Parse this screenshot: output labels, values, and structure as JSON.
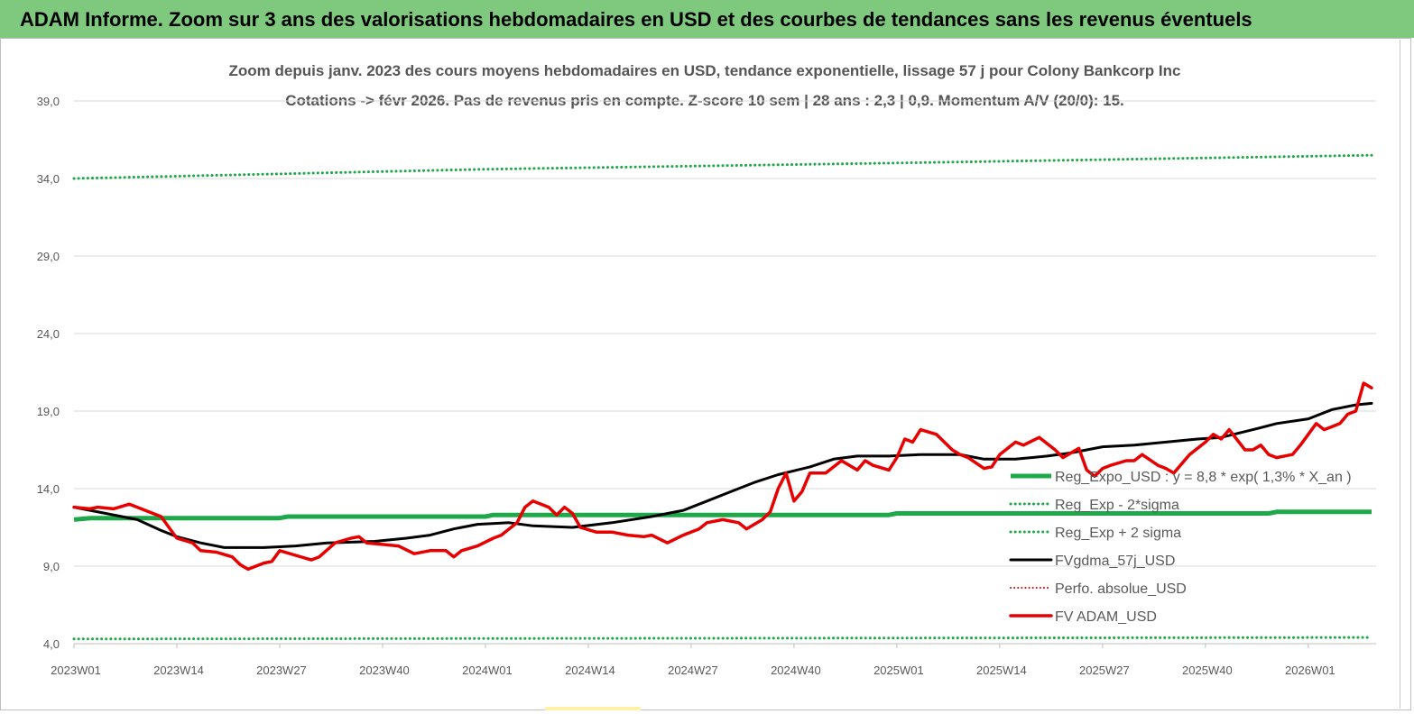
{
  "banner": {
    "title": "ADAM Informe. Zoom sur 3 ans des valorisations hebdomadaires en USD et des courbes de tendances sans les revenus éventuels"
  },
  "colors": {
    "banner_bg": "#7fc97f",
    "reg_expo": "#1ea84a",
    "sigma_bands": "#1ea84a",
    "fvgdma": "#000000",
    "perfo": "#e00000",
    "fvadam": "#e80000",
    "grid": "#d9d9d9"
  },
  "chart_data": {
    "type": "line",
    "title_line1": "Zoom depuis janv. 2023 des cours moyens hebdomadaires en USD, tendance exponentielle, lissage 57 j pour Colony Bankcorp Inc",
    "title_line2": "Cotations -> févr 2026.  Pas de revenus pris en compte. Z-score 10 sem  | 28 ans : 2,3  | 0,9. Momentum A/V (20/0): 15.",
    "xlabel": "",
    "ylabel": "",
    "ylim": [
      4,
      39
    ],
    "yticks": [
      "39,0",
      "34,0",
      "29,0",
      "24,0",
      "19,0",
      "14,0",
      "9,0",
      "4,0"
    ],
    "ytick_values": [
      39,
      34,
      29,
      24,
      19,
      14,
      9,
      4
    ],
    "xticks": [
      "2023W01",
      "2023W14",
      "2023W27",
      "2023W40",
      "2024W01",
      "2024W14",
      "2024W27",
      "2024W40",
      "2025W01",
      "2025W14",
      "2025W27",
      "2025W40",
      "2026W01"
    ],
    "xtick_weeks": [
      0,
      13,
      26,
      39,
      52,
      65,
      78,
      91,
      104,
      117,
      130,
      143,
      156
    ],
    "x_range_weeks": [
      0,
      164
    ],
    "grid": "horizontal",
    "legend_placement": "bottom-right",
    "series": [
      {
        "name": "Reg_Expo_USD : y = 8,8 * exp( 1,3% *  X_an )",
        "style": "thick-solid",
        "keypoints": [
          [
            0,
            12.0
          ],
          [
            2,
            12.1
          ],
          [
            26,
            12.1
          ],
          [
            27,
            12.2
          ],
          [
            52,
            12.2
          ],
          [
            53,
            12.3
          ],
          [
            103,
            12.3
          ],
          [
            104,
            12.4
          ],
          [
            151,
            12.4
          ],
          [
            152,
            12.5
          ],
          [
            164,
            12.5
          ]
        ]
      },
      {
        "name": "Reg_Exp - 2*sigma",
        "style": "dotted",
        "keypoints": [
          [
            0,
            4.3
          ],
          [
            164,
            4.4
          ]
        ]
      },
      {
        "name": "Reg_Exp + 2 sigma",
        "style": "dotted",
        "keypoints": [
          [
            0,
            34.0
          ],
          [
            52,
            34.6
          ],
          [
            104,
            35.0
          ],
          [
            164,
            35.5
          ]
        ]
      },
      {
        "name": "FVgdma_57j_USD",
        "style": "solid",
        "keypoints": [
          [
            0,
            12.8
          ],
          [
            4,
            12.4
          ],
          [
            8,
            12.0
          ],
          [
            11,
            11.3
          ],
          [
            13,
            10.9
          ],
          [
            16,
            10.5
          ],
          [
            19,
            10.2
          ],
          [
            24,
            10.2
          ],
          [
            28,
            10.3
          ],
          [
            32,
            10.5
          ],
          [
            38,
            10.6
          ],
          [
            42,
            10.8
          ],
          [
            45,
            11.0
          ],
          [
            48,
            11.4
          ],
          [
            51,
            11.7
          ],
          [
            55,
            11.8
          ],
          [
            58,
            11.6
          ],
          [
            63,
            11.5
          ],
          [
            68,
            11.8
          ],
          [
            73,
            12.2
          ],
          [
            77,
            12.6
          ],
          [
            80,
            13.2
          ],
          [
            83,
            13.8
          ],
          [
            86,
            14.4
          ],
          [
            89,
            14.9
          ],
          [
            93,
            15.4
          ],
          [
            96,
            15.9
          ],
          [
            99,
            16.1
          ],
          [
            103,
            16.1
          ],
          [
            107,
            16.2
          ],
          [
            112,
            16.2
          ],
          [
            115,
            15.9
          ],
          [
            119,
            15.9
          ],
          [
            123,
            16.1
          ],
          [
            126,
            16.3
          ],
          [
            130,
            16.7
          ],
          [
            134,
            16.8
          ],
          [
            138,
            17.0
          ],
          [
            142,
            17.2
          ],
          [
            145,
            17.3
          ],
          [
            149,
            17.8
          ],
          [
            152,
            18.2
          ],
          [
            156,
            18.5
          ],
          [
            159,
            19.1
          ],
          [
            162,
            19.4
          ],
          [
            164,
            19.5
          ]
        ]
      },
      {
        "name": "Perfo. absolue_USD",
        "style": "dotted-red",
        "keypoints": []
      },
      {
        "name": "FV ADAM_USD",
        "style": "thick-solid",
        "keypoints": [
          [
            0,
            12.8
          ],
          [
            2,
            12.7
          ],
          [
            3,
            12.8
          ],
          [
            5,
            12.7
          ],
          [
            7,
            13.0
          ],
          [
            9,
            12.6
          ],
          [
            11,
            12.2
          ],
          [
            12,
            11.5
          ],
          [
            13,
            10.8
          ],
          [
            15,
            10.5
          ],
          [
            16,
            10.0
          ],
          [
            18,
            9.9
          ],
          [
            20,
            9.6
          ],
          [
            21,
            9.1
          ],
          [
            22,
            8.8
          ],
          [
            24,
            9.2
          ],
          [
            25,
            9.3
          ],
          [
            26,
            10.0
          ],
          [
            28,
            9.7
          ],
          [
            30,
            9.4
          ],
          [
            31,
            9.6
          ],
          [
            33,
            10.5
          ],
          [
            35,
            10.8
          ],
          [
            36,
            10.9
          ],
          [
            37,
            10.5
          ],
          [
            39,
            10.4
          ],
          [
            41,
            10.3
          ],
          [
            43,
            9.8
          ],
          [
            45,
            10.0
          ],
          [
            47,
            10.0
          ],
          [
            48,
            9.6
          ],
          [
            49,
            10.0
          ],
          [
            51,
            10.3
          ],
          [
            53,
            10.8
          ],
          [
            54,
            11.0
          ],
          [
            56,
            11.8
          ],
          [
            57,
            12.8
          ],
          [
            58,
            13.2
          ],
          [
            60,
            12.8
          ],
          [
            61,
            12.3
          ],
          [
            62,
            12.8
          ],
          [
            63,
            12.4
          ],
          [
            64,
            11.5
          ],
          [
            66,
            11.2
          ],
          [
            68,
            11.2
          ],
          [
            70,
            11.0
          ],
          [
            72,
            10.9
          ],
          [
            73,
            11.0
          ],
          [
            75,
            10.5
          ],
          [
            77,
            11.0
          ],
          [
            79,
            11.4
          ],
          [
            80,
            11.8
          ],
          [
            82,
            12.0
          ],
          [
            84,
            11.8
          ],
          [
            85,
            11.4
          ],
          [
            87,
            12.0
          ],
          [
            88,
            12.5
          ],
          [
            89,
            14.0
          ],
          [
            90,
            15.0
          ],
          [
            91,
            13.2
          ],
          [
            92,
            13.8
          ],
          [
            93,
            15.0
          ],
          [
            95,
            15.0
          ],
          [
            97,
            15.8
          ],
          [
            99,
            15.2
          ],
          [
            100,
            15.8
          ],
          [
            101,
            15.5
          ],
          [
            103,
            15.2
          ],
          [
            104,
            16.0
          ],
          [
            105,
            17.2
          ],
          [
            106,
            17.0
          ],
          [
            107,
            17.8
          ],
          [
            109,
            17.5
          ],
          [
            111,
            16.5
          ],
          [
            112,
            16.2
          ],
          [
            113,
            16.0
          ],
          [
            115,
            15.3
          ],
          [
            116,
            15.4
          ],
          [
            117,
            16.2
          ],
          [
            119,
            17.0
          ],
          [
            120,
            16.8
          ],
          [
            122,
            17.3
          ],
          [
            124,
            16.5
          ],
          [
            125,
            16.0
          ],
          [
            127,
            16.6
          ],
          [
            128,
            15.2
          ],
          [
            129,
            14.8
          ],
          [
            130,
            15.3
          ],
          [
            131,
            15.5
          ],
          [
            133,
            15.8
          ],
          [
            134,
            15.8
          ],
          [
            135,
            16.2
          ],
          [
            137,
            15.5
          ],
          [
            138,
            15.3
          ],
          [
            139,
            15.0
          ],
          [
            141,
            16.2
          ],
          [
            143,
            17.0
          ],
          [
            144,
            17.5
          ],
          [
            145,
            17.2
          ],
          [
            146,
            17.8
          ],
          [
            148,
            16.5
          ],
          [
            149,
            16.5
          ],
          [
            150,
            16.8
          ],
          [
            151,
            16.2
          ],
          [
            152,
            16.0
          ],
          [
            154,
            16.2
          ],
          [
            155,
            16.8
          ],
          [
            157,
            18.2
          ],
          [
            158,
            17.8
          ],
          [
            159,
            18.0
          ],
          [
            160,
            18.2
          ],
          [
            161,
            18.8
          ],
          [
            162,
            19.0
          ],
          [
            163,
            20.8
          ],
          [
            164,
            20.5
          ]
        ]
      }
    ]
  }
}
